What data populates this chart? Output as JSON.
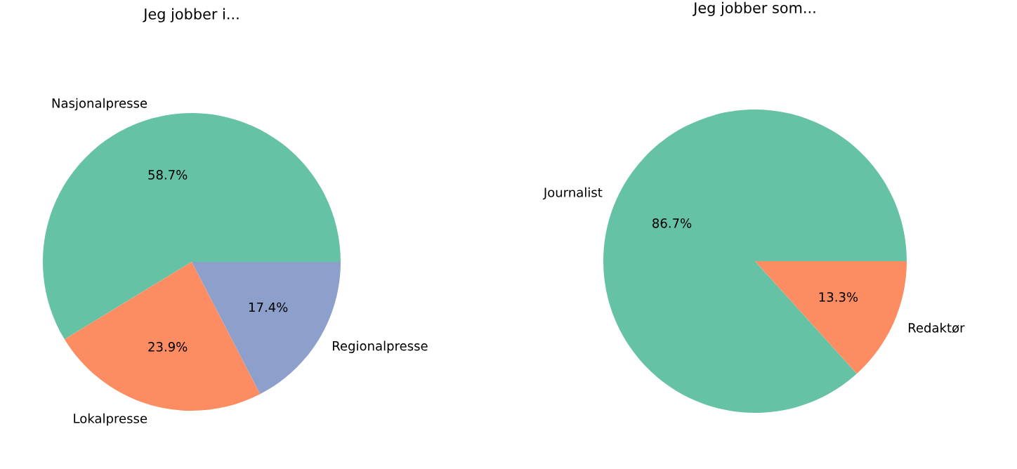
{
  "chart_data": [
    {
      "type": "pie",
      "title": "Jeg jobber i...",
      "categories": [
        "Nasjonalpresse",
        "Lokalpresse",
        "Regionalpresse"
      ],
      "values": [
        58.7,
        23.9,
        17.4
      ],
      "value_labels": [
        "58.7%",
        "23.9%",
        "17.4%"
      ],
      "colors": [
        "#66c2a5",
        "#fc8d62",
        "#8da0cb"
      ]
    },
    {
      "type": "pie",
      "title": "Jeg jobber som...",
      "categories": [
        "Journalist",
        "Redaktør"
      ],
      "values": [
        86.7,
        13.3
      ],
      "value_labels": [
        "86.7%",
        "13.3%"
      ],
      "colors": [
        "#66c2a5",
        "#fc8d62"
      ]
    }
  ]
}
